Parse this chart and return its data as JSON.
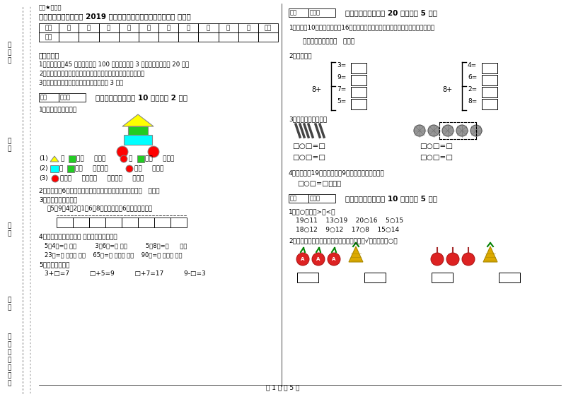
{
  "title": "湘西土家族苗族自治州 2019 年一年级数学上学期开学检测试卷 附答案",
  "watermark": "绝密★启用前",
  "table_headers": [
    "题号",
    "一",
    "二",
    "三",
    "四",
    "五",
    "六",
    "七",
    "八",
    "九",
    "十",
    "总分"
  ],
  "table_row": [
    "得分",
    "",
    "",
    "",
    "",
    "",
    "",
    "",
    "",
    "",
    "",
    ""
  ],
  "notes_title": "考试须知：",
  "notes": [
    "1．考试时间：45 分钟，满分为 100 分（含卷面分 3 分），附加题单题 20 分。",
    "2．请首先按要求在试卷的指定位置填写您的姓名、班级、学号。",
    "3．不要在试卷上乱写乱画，卷面不整洁扣 3 分。"
  ],
  "section1_title": "一、我会填（本题共 10 分，每题 2 分）",
  "section1_q1": "1．看一看，填一填。",
  "section1_q2": "2．小蕊今年6岁，正好是姐姐年龄的一半，你说姐姐今年（   ）岁。",
  "section1_q3": "3．想一想，填一填。",
  "section1_q3_sub": "在5、9、4、2、1、6、8、中，把小于6的数写在下面。",
  "section1_q4": "4．人民币的认识，在（ ）里填上合适的数。",
  "section1_q4_items": [
    "5角4分=（ ）分          3元6角=（ ）角          5元8角=（      ）角",
    "23分=（ ）角（ ）分    65角=（ ）元（ ）角    90角=（ ）元（ ）角"
  ],
  "section1_q5": "5．在口里填数。",
  "section1_q5_items": "3+□=7          □+5=9          □+7=17          9-□=3",
  "section2_title": "二、我会算（本题共 20 分，每题 5 分）",
  "section2_q1": "1．小丽有10支铅笔，小云有16支铅笔。小云送给小丽几支后，两人的铅笔同样多？",
  "section2_q1_ans": "答：小云送给小丽（   ）只。",
  "section2_q2": "2．算一算。",
  "section2_q2_left": [
    "3=",
    "9=",
    "7=",
    "5="
  ],
  "section2_q2_right": [
    "4=",
    "6=",
    "2=",
    "8="
  ],
  "section2_q3": "3．看图列算式计算。",
  "section2_q4": "4．小明家有19只小于，卖了9只，现在还有多少只？",
  "section2_q4_items": "□○□=□（只）",
  "section3_title": "三、我会比（本题共 10 分，每题 5 分）",
  "section3_q1": "1．在○里填上>或<。",
  "section3_q1_items": [
    "19○11    13○19    20○16    5○15",
    "18○12    9○12    17○8    15○14"
  ],
  "section3_q2": "2．比一比，画一画（会换算填），最重的画√，最轻的画○。",
  "page_footer": "第 1 页 共 5 页",
  "bg_color": "#ffffff"
}
